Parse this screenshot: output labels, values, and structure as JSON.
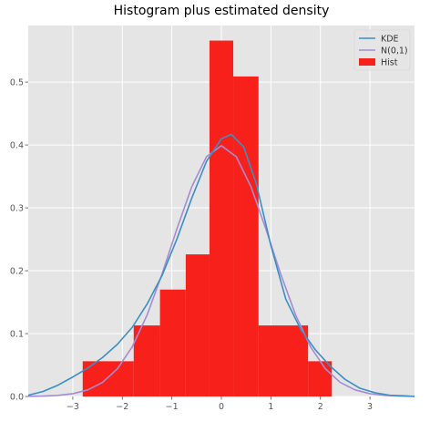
{
  "chart_data": {
    "type": "bar",
    "title": "Histogram plus estimated density",
    "xlabel": "",
    "ylabel": "",
    "xlim": [
      -3.9,
      3.9
    ],
    "ylim": [
      0,
      0.59
    ],
    "grid": true,
    "legend_placement": "top-right",
    "xticks": [
      {
        "value": -3,
        "label": "−3"
      },
      {
        "value": -2,
        "label": "−2"
      },
      {
        "value": -1,
        "label": "−1"
      },
      {
        "value": 0,
        "label": "0"
      },
      {
        "value": 1,
        "label": "1"
      },
      {
        "value": 2,
        "label": "2"
      },
      {
        "value": 3,
        "label": "3"
      }
    ],
    "yticks": [
      {
        "value": 0.0,
        "label": "0.0"
      },
      {
        "value": 0.1,
        "label": "0.1"
      },
      {
        "value": 0.2,
        "label": "0.2"
      },
      {
        "value": 0.3,
        "label": "0.3"
      },
      {
        "value": 0.4,
        "label": "0.4"
      },
      {
        "value": 0.5,
        "label": "0.5"
      }
    ],
    "histogram": {
      "name": "Hist",
      "color": "#f8201a",
      "bin_edges": [
        -2.8,
        -1.77,
        -1.24,
        -0.72,
        -0.24,
        0.24,
        0.75,
        1.75,
        2.23
      ],
      "values": [
        0.056,
        0.113,
        0.17,
        0.226,
        0.566,
        0.509,
        0.113,
        0.056
      ]
    },
    "series": [
      {
        "name": "KDE",
        "type": "line",
        "color": "#3a8fc4",
        "x": [
          -3.9,
          -3.6,
          -3.3,
          -3.0,
          -2.7,
          -2.4,
          -2.1,
          -1.8,
          -1.5,
          -1.2,
          -0.9,
          -0.6,
          -0.3,
          0.0,
          0.2,
          0.45,
          0.7,
          1.0,
          1.3,
          1.6,
          1.9,
          2.2,
          2.5,
          2.8,
          3.1,
          3.4,
          3.7,
          3.9
        ],
        "y": [
          0.002,
          0.008,
          0.018,
          0.031,
          0.045,
          0.062,
          0.083,
          0.11,
          0.147,
          0.192,
          0.25,
          0.315,
          0.374,
          0.41,
          0.417,
          0.397,
          0.34,
          0.24,
          0.155,
          0.107,
          0.074,
          0.048,
          0.027,
          0.013,
          0.006,
          0.002,
          0.001,
          0.0
        ]
      },
      {
        "name": "N(0,1)",
        "type": "line",
        "color": "#a58bd4",
        "x": [
          -3.9,
          -3.6,
          -3.3,
          -3.0,
          -2.7,
          -2.4,
          -2.1,
          -1.8,
          -1.5,
          -1.2,
          -0.9,
          -0.6,
          -0.3,
          0.0,
          0.3,
          0.6,
          0.9,
          1.2,
          1.5,
          1.8,
          2.1,
          2.4,
          2.7,
          3.0,
          3.3,
          3.6,
          3.9
        ],
        "y": [
          0.0002,
          0.0006,
          0.0017,
          0.0044,
          0.0104,
          0.0224,
          0.044,
          0.079,
          0.1295,
          0.1942,
          0.2661,
          0.3332,
          0.3814,
          0.3989,
          0.3814,
          0.3332,
          0.2661,
          0.1942,
          0.1295,
          0.079,
          0.044,
          0.0224,
          0.0104,
          0.0044,
          0.0017,
          0.0006,
          0.0002
        ]
      }
    ],
    "legend": [
      {
        "label": "KDE",
        "kind": "line",
        "color": "#3a8fc4"
      },
      {
        "label": "N(0,1)",
        "kind": "line",
        "color": "#a58bd4"
      },
      {
        "label": "Hist",
        "kind": "patch",
        "color": "#f8201a"
      }
    ]
  }
}
